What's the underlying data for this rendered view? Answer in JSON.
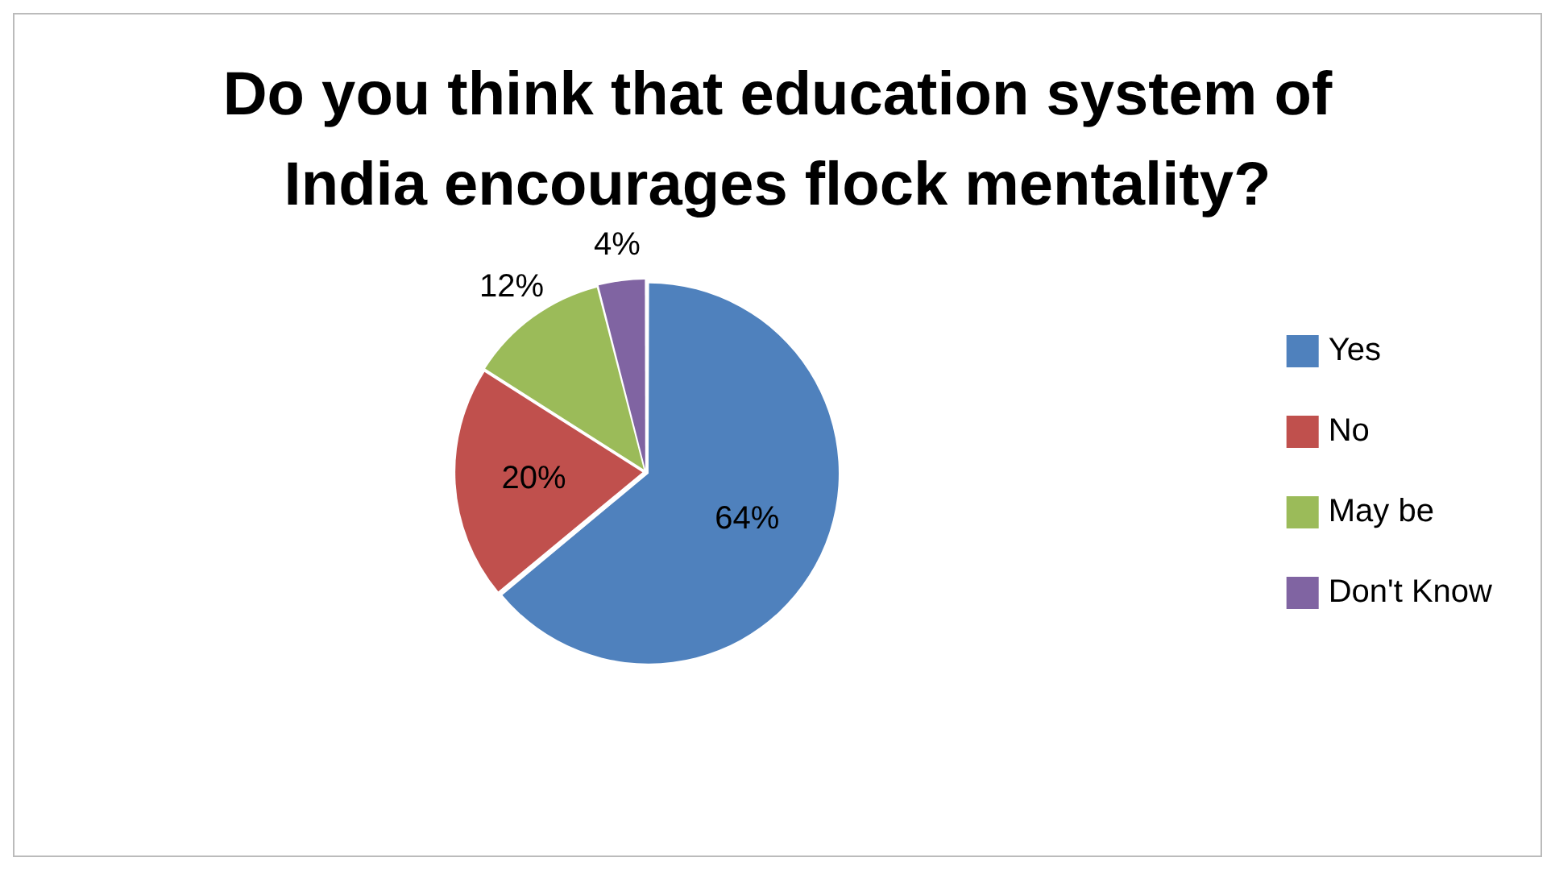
{
  "chart_data": {
    "type": "pie",
    "title": "Do you think that education system of India encourages flock mentality?",
    "categories": [
      "Yes",
      "No",
      "May be",
      "Don't Know"
    ],
    "values": [
      64,
      20,
      12,
      4
    ],
    "colors": [
      "#4f81bd",
      "#c0504d",
      "#9bbb59",
      "#8064a2"
    ],
    "value_labels": [
      "64%",
      "20%",
      "12%",
      "4%"
    ],
    "legend": "right"
  }
}
